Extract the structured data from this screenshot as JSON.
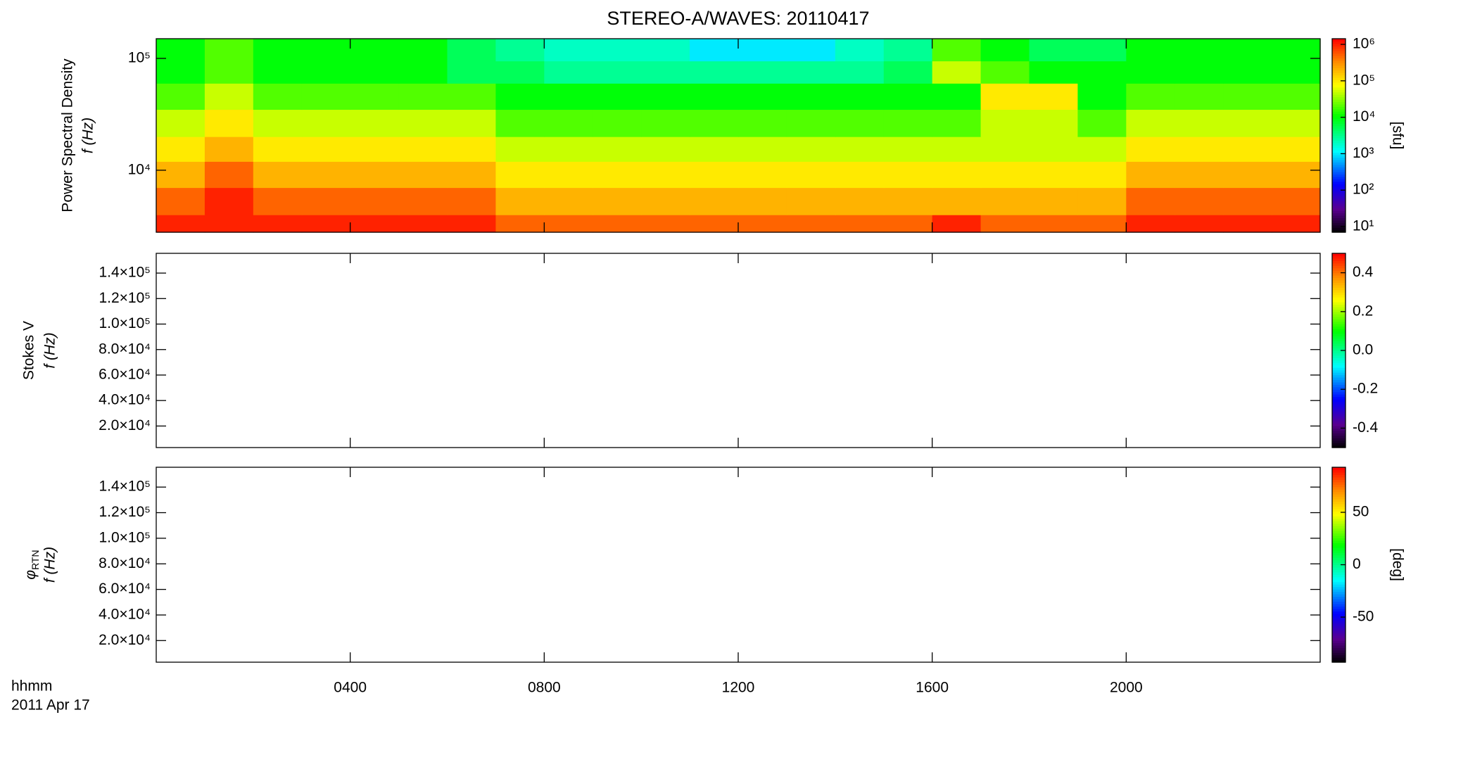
{
  "chart_data": [
    {
      "type": "heatmap",
      "title": "STEREO-A/WAVES: 20110417",
      "ylabel": "Power Spectral Density",
      "ylabel2": "f (Hz)",
      "ylog": true,
      "ylim": [
        2790,
        150000
      ],
      "yticks": [
        {
          "value": 10000,
          "label": "10⁴"
        },
        {
          "value": 100000,
          "label": "10⁵"
        }
      ],
      "xbins": [
        0,
        1,
        2,
        3,
        4,
        5,
        6,
        7,
        8,
        9,
        10,
        11,
        12,
        13,
        14,
        15,
        16,
        17,
        18,
        19,
        20,
        21,
        22,
        23,
        24
      ],
      "ybins": [
        2790,
        4000,
        7000,
        12000,
        20000,
        35000,
        60000,
        95000,
        150000
      ],
      "values": [
        [
          1000000,
          1000000,
          1000000,
          1000000,
          1000000,
          1000000,
          1000000,
          500000,
          500000,
          500000,
          500000,
          500000,
          500000,
          500000,
          500000,
          500000,
          1000000,
          500000,
          500000,
          500000,
          1000000,
          1000000,
          1000000,
          1000000
        ],
        [
          500000,
          1000000,
          500000,
          500000,
          500000,
          500000,
          500000,
          200000,
          200000,
          200000,
          200000,
          200000,
          200000,
          200000,
          200000,
          200000,
          200000,
          200000,
          200000,
          200000,
          500000,
          500000,
          500000,
          500000
        ],
        [
          200000,
          500000,
          200000,
          200000,
          200000,
          200000,
          200000,
          100000,
          100000,
          100000,
          100000,
          100000,
          100000,
          100000,
          100000,
          100000,
          100000,
          100000,
          100000,
          100000,
          200000,
          200000,
          200000,
          200000
        ],
        [
          100000,
          200000,
          100000,
          100000,
          100000,
          100000,
          100000,
          50000,
          50000,
          50000,
          50000,
          50000,
          50000,
          50000,
          50000,
          50000,
          50000,
          50000,
          50000,
          50000,
          100000,
          100000,
          100000,
          100000
        ],
        [
          50000,
          100000,
          50000,
          50000,
          50000,
          50000,
          50000,
          20000,
          20000,
          20000,
          20000,
          20000,
          20000,
          20000,
          20000,
          20000,
          20000,
          50000,
          50000,
          20000,
          50000,
          50000,
          50000,
          50000
        ],
        [
          20000,
          50000,
          20000,
          20000,
          20000,
          20000,
          20000,
          10000,
          10000,
          10000,
          10000,
          10000,
          10000,
          10000,
          10000,
          10000,
          10000,
          100000,
          100000,
          10000,
          20000,
          20000,
          20000,
          20000
        ],
        [
          10000,
          20000,
          10000,
          10000,
          10000,
          10000,
          5000,
          5000,
          3000,
          3000,
          3000,
          3000,
          3000,
          3000,
          3000,
          5000,
          50000,
          20000,
          10000,
          10000,
          10000,
          10000,
          10000,
          10000
        ],
        [
          10000,
          20000,
          10000,
          10000,
          10000,
          10000,
          5000,
          3000,
          2000,
          2000,
          2000,
          1000,
          1000,
          1000,
          2000,
          3000,
          20000,
          10000,
          5000,
          5000,
          10000,
          10000,
          10000,
          10000
        ]
      ],
      "colorbar": {
        "log": true,
        "lim": [
          7,
          1430000
        ],
        "ticks": [
          {
            "value": 10,
            "label": "10¹"
          },
          {
            "value": 100,
            "label": "10²"
          },
          {
            "value": 1000,
            "label": "10³"
          },
          {
            "value": 10000,
            "label": "10⁴"
          },
          {
            "value": 100000,
            "label": "10⁵"
          },
          {
            "value": 1000000,
            "label": "10⁶"
          }
        ],
        "label": "[sfu]"
      }
    },
    {
      "type": "heatmap",
      "ylabel": "Stokes V",
      "ylabel2": "f (Hz)",
      "ylim": [
        3100,
        155500
      ],
      "yticks": [
        {
          "value": 20000,
          "label": "2.0×10⁴"
        },
        {
          "value": 40000,
          "label": "4.0×10⁴"
        },
        {
          "value": 60000,
          "label": "6.0×10⁴"
        },
        {
          "value": 80000,
          "label": "8.0×10⁴"
        },
        {
          "value": 100000,
          "label": "1.0×10⁵"
        },
        {
          "value": 120000,
          "label": "1.2×10⁵"
        },
        {
          "value": 140000,
          "label": "1.4×10⁵"
        }
      ],
      "colorbar": {
        "lim": [
          -0.5,
          0.5
        ],
        "ticks": [
          -0.4,
          -0.2,
          {
            "value": 0,
            "label": "0.0"
          },
          0.2,
          0.4
        ]
      }
    },
    {
      "type": "heatmap",
      "ylabel_symbol": "φ",
      "ylabel_subscript": "RTN",
      "ylabel2": "f (Hz)",
      "ylim": [
        3100,
        155500
      ],
      "yticks": [
        {
          "value": 20000,
          "label": "2.0×10⁴"
        },
        {
          "value": 40000,
          "label": "4.0×10⁴"
        },
        {
          "value": 60000,
          "label": "6.0×10⁴"
        },
        {
          "value": 80000,
          "label": "8.0×10⁴"
        },
        {
          "value": 100000,
          "label": "1.0×10⁵"
        },
        {
          "value": 120000,
          "label": "1.2×10⁵"
        },
        {
          "value": 140000,
          "label": "1.4×10⁵"
        }
      ],
      "colorbar": {
        "lim": [
          -93,
          93
        ],
        "ticks": [
          -50,
          0,
          50
        ],
        "label": "[deg]"
      },
      "xlim": [
        0,
        24
      ],
      "xticks": [
        {
          "value": 4,
          "label": "0400"
        },
        {
          "value": 8,
          "label": "0800"
        },
        {
          "value": 12,
          "label": "1200"
        },
        {
          "value": 16,
          "label": "1600"
        },
        {
          "value": 20,
          "label": "2000"
        }
      ],
      "xlabel": "hhmm",
      "date": "2011 Apr 17"
    }
  ]
}
